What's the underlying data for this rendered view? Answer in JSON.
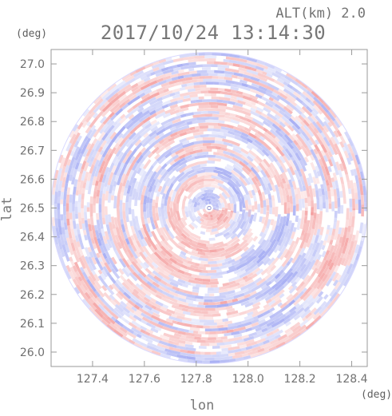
{
  "header": {
    "altitude_label": "ALT(km) 2.0",
    "timestamp": "2017/10/24 13:14:30"
  },
  "colors": {
    "positive": "#f28e8e",
    "negative": "#8f98f0",
    "axis": "#9a9a9a",
    "text": "#777777"
  },
  "chart_data": {
    "type": "heatmap",
    "title": "",
    "xlabel": "lon",
    "ylabel": "lat",
    "x_unit": "(deg)",
    "y_unit": "(deg)",
    "xlim": [
      127.24,
      128.46
    ],
    "ylim": [
      25.95,
      27.05
    ],
    "x_ticks": [
      127.4,
      127.6,
      127.8,
      128.0,
      128.2,
      128.4
    ],
    "x_tick_labels": [
      "127.4",
      "127.6",
      "127.8",
      "128.0",
      "128.2",
      "128.4"
    ],
    "y_ticks": [
      27.0,
      26.9,
      26.8,
      26.7,
      26.6,
      26.5,
      26.4,
      26.3,
      26.2,
      26.1,
      26.0
    ],
    "y_tick_labels": [
      "27.0",
      "26.9",
      "26.8",
      "26.7",
      "26.6",
      "26.5",
      "26.4",
      "26.3",
      "26.2",
      "26.1",
      "26.0"
    ],
    "radar_center": {
      "lon": 127.85,
      "lat": 26.5
    },
    "radar_radius_deg": {
      "lon": 0.61,
      "lat": 0.54
    },
    "grid": false,
    "colorscale": [
      "#8f98f0",
      "#ffffff",
      "#f28e8e"
    ]
  }
}
